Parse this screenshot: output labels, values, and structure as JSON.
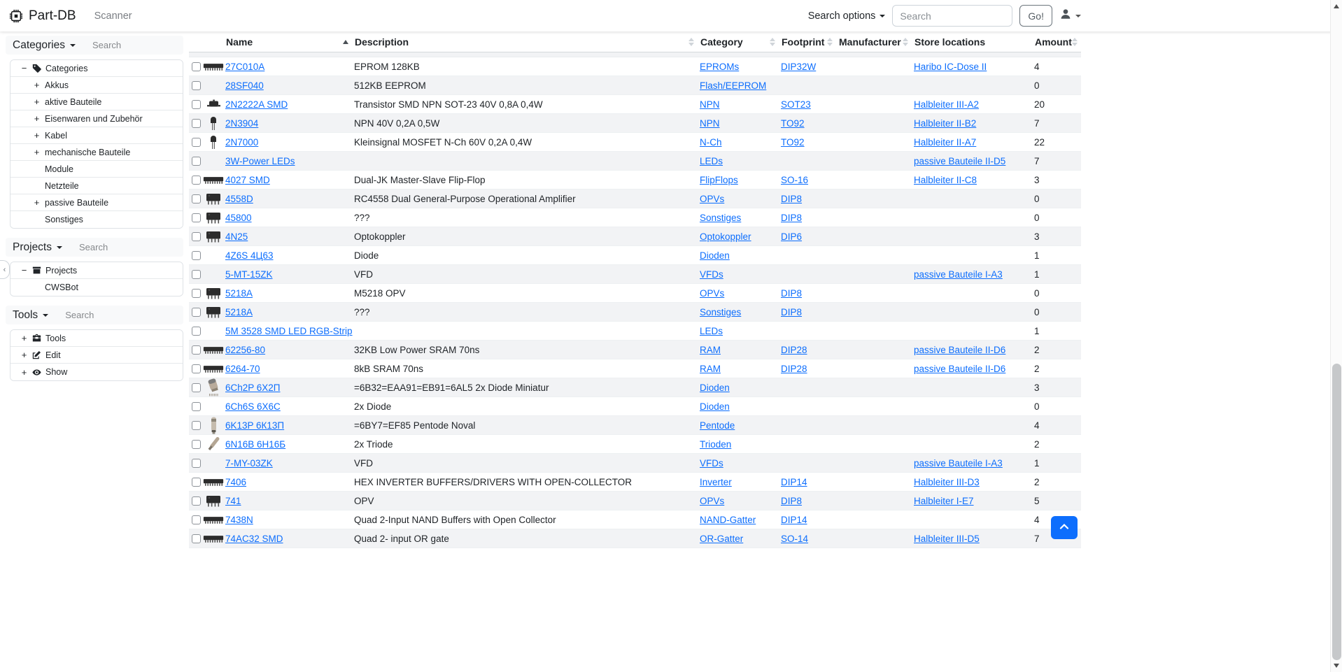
{
  "colors": {
    "link_blue": "#0d6efd",
    "accent_blue": "#0d6efd",
    "stripe_gray": "#f2f3f5"
  },
  "navbar": {
    "brand": "Part-DB",
    "brand_icon": "cpu-chip-icon",
    "scanner_label": "Scanner",
    "search_options_label": "Search options",
    "search_placeholder": "Search",
    "go_label": "Go!",
    "user_icon": "person-icon"
  },
  "sidebar": {
    "panels": [
      {
        "title": "Categories",
        "search_placeholder": "Search",
        "tree": [
          {
            "label": "Categories",
            "toggle": "minus",
            "icon": "tag-icon",
            "level": 0
          },
          {
            "label": "Akkus",
            "toggle": "plus",
            "level": 1
          },
          {
            "label": "aktive Bauteile",
            "toggle": "plus",
            "level": 1
          },
          {
            "label": "Eisenwaren und Zubehör",
            "toggle": "plus",
            "level": 1
          },
          {
            "label": "Kabel",
            "toggle": "plus",
            "level": 1
          },
          {
            "label": "mechanische Bauteile",
            "toggle": "plus",
            "level": 1
          },
          {
            "label": "Module",
            "toggle": "none",
            "level": 1
          },
          {
            "label": "Netzteile",
            "toggle": "none",
            "level": 1
          },
          {
            "label": "passive Bauteile",
            "toggle": "plus",
            "level": 1
          },
          {
            "label": "Sonstiges",
            "toggle": "none",
            "level": 1
          }
        ]
      },
      {
        "title": "Projects",
        "search_placeholder": "Search",
        "tree": [
          {
            "label": "Projects",
            "toggle": "minus",
            "icon": "archive-box-icon",
            "level": 0
          },
          {
            "label": "CWSBot",
            "toggle": "none",
            "level": 1
          }
        ]
      },
      {
        "title": "Tools",
        "search_placeholder": "Search",
        "tree": [
          {
            "label": "Tools",
            "toggle": "plus",
            "icon": "toolbox-icon",
            "level": 0
          },
          {
            "label": "Edit",
            "toggle": "plus",
            "icon": "pencil-square-icon",
            "level": 0
          },
          {
            "label": "Show",
            "toggle": "plus",
            "icon": "eye-icon",
            "level": 0
          }
        ]
      }
    ],
    "collapse_handle_icon": "chevron-left-icon"
  },
  "table": {
    "columns": [
      {
        "label": "Name",
        "sort": "asc"
      },
      {
        "label": "Description",
        "sort": "both"
      },
      {
        "label": "Category",
        "sort": "both"
      },
      {
        "label": "Footprint",
        "sort": "both"
      },
      {
        "label": "Manufacturer",
        "sort": "both"
      },
      {
        "label": "Store locations",
        "sort": "none"
      },
      {
        "label": "Amount",
        "sort": "both"
      }
    ],
    "rows": [
      {
        "name": "27C010A",
        "thumb": "ic-dip-side",
        "desc": "EPROM 128KB",
        "category": "EPROMs",
        "footprint": "DIP32W",
        "manufacturer": "",
        "store": "Haribo IC-Dose II",
        "amount": "4"
      },
      {
        "name": "28SF040",
        "thumb": "",
        "desc": "512KB EEPROM",
        "category": "Flash/EEPROM",
        "footprint": "",
        "manufacturer": "",
        "store": "",
        "amount": "0"
      },
      {
        "name": "2N2222A SMD",
        "thumb": "sot23",
        "desc": "Transistor SMD NPN SOT-23 40V 0,8A 0,4W",
        "category": "NPN",
        "footprint": "SOT23",
        "manufacturer": "",
        "store": "Halbleiter III-A2",
        "amount": "20"
      },
      {
        "name": "2N3904",
        "thumb": "to92",
        "desc": "NPN 40V 0,2A 0,5W",
        "category": "NPN",
        "footprint": "TO92",
        "manufacturer": "",
        "store": "Halbleiter II-B2",
        "amount": "7"
      },
      {
        "name": "2N7000",
        "thumb": "to92",
        "desc": "Kleinsignal MOSFET N-Ch 60V 0,2A 0,4W",
        "category": "N-Ch",
        "footprint": "TO92",
        "manufacturer": "",
        "store": "Halbleiter II-A7",
        "amount": "22"
      },
      {
        "name": "3W-Power LEDs",
        "thumb": "",
        "desc": "",
        "category": "LEDs",
        "footprint": "",
        "manufacturer": "",
        "store": "passive Bauteile II-D5",
        "amount": "7"
      },
      {
        "name": "4027 SMD",
        "thumb": "ic-dip-side",
        "desc": "Dual-JK Master-Slave Flip-Flop",
        "category": "FlipFlops",
        "footprint": "SO-16",
        "manufacturer": "",
        "store": "Halbleiter II-C8",
        "amount": "3"
      },
      {
        "name": "4558D",
        "thumb": "ic-dip8",
        "desc": "RC4558 Dual General-Purpose Operational Amplifier",
        "category": "OPVs",
        "footprint": "DIP8",
        "manufacturer": "",
        "store": "",
        "amount": "0"
      },
      {
        "name": "45800",
        "thumb": "ic-dip8",
        "desc": "???",
        "category": "Sonstiges",
        "footprint": "DIP8",
        "manufacturer": "",
        "store": "",
        "amount": "0"
      },
      {
        "name": "4N25",
        "thumb": "ic-dip8",
        "desc": "Optokoppler",
        "category": "Optokoppler",
        "footprint": "DIP6",
        "manufacturer": "",
        "store": "",
        "amount": "3"
      },
      {
        "name": "4Z6S 4Ц63",
        "thumb": "",
        "desc": "Diode",
        "category": "Dioden",
        "footprint": "",
        "manufacturer": "",
        "store": "",
        "amount": "1"
      },
      {
        "name": "5-MT-15ZK",
        "thumb": "",
        "desc": "VFD",
        "category": "VFDs",
        "footprint": "",
        "manufacturer": "",
        "store": "passive Bauteile I-A3",
        "amount": "1"
      },
      {
        "name": "5218A",
        "thumb": "ic-dip8",
        "desc": "M5218 OPV",
        "category": "OPVs",
        "footprint": "DIP8",
        "manufacturer": "",
        "store": "",
        "amount": "0"
      },
      {
        "name": "5218A",
        "thumb": "ic-dip8",
        "desc": "???",
        "category": "Sonstiges",
        "footprint": "DIP8",
        "manufacturer": "",
        "store": "",
        "amount": "0"
      },
      {
        "name": "5M 3528 SMD LED RGB-Strip",
        "thumb": "",
        "desc": "",
        "category": "LEDs",
        "footprint": "",
        "manufacturer": "",
        "store": "",
        "amount": "1"
      },
      {
        "name": "62256-80",
        "thumb": "ic-dip-side",
        "desc": "32KB Low Power SRAM 70ns",
        "category": "RAM",
        "footprint": "DIP28",
        "manufacturer": "",
        "store": "passive Bauteile II-D6",
        "amount": "2"
      },
      {
        "name": "6264-70",
        "thumb": "ic-dip-side",
        "desc": "8kB SRAM 70ns",
        "category": "RAM",
        "footprint": "DIP28",
        "manufacturer": "",
        "store": "passive Bauteile II-D6",
        "amount": "2"
      },
      {
        "name": "6Ch2P 6Х2П",
        "thumb": "tube-round",
        "desc": "=6B32=EAA91=EB91=6AL5 2x Diode Miniatur",
        "category": "Dioden",
        "footprint": "",
        "manufacturer": "",
        "store": "",
        "amount": "3"
      },
      {
        "name": "6Ch6S 6X6C",
        "thumb": "",
        "desc": "2x Diode",
        "category": "Dioden",
        "footprint": "",
        "manufacturer": "",
        "store": "",
        "amount": "0"
      },
      {
        "name": "6K13P 6К13П",
        "thumb": "tube-tall",
        "desc": "=6BY7=EF85 Pentode Noval",
        "category": "Pentode",
        "footprint": "",
        "manufacturer": "",
        "store": "",
        "amount": "4"
      },
      {
        "name": "6N16B 6Н16Б",
        "thumb": "tube-diagonal",
        "desc": "2x Triode",
        "category": "Trioden",
        "footprint": "",
        "manufacturer": "",
        "store": "",
        "amount": "2"
      },
      {
        "name": "7-MY-03ZK",
        "thumb": "",
        "desc": "VFD",
        "category": "VFDs",
        "footprint": "",
        "manufacturer": "",
        "store": "passive Bauteile I-A3",
        "amount": "1"
      },
      {
        "name": "7406",
        "thumb": "ic-dip-side",
        "desc": "HEX INVERTER BUFFERS/DRIVERS WITH OPEN-COLLECTOR",
        "category": "Inverter",
        "footprint": "DIP14",
        "manufacturer": "",
        "store": "Halbleiter III-D3",
        "amount": "2"
      },
      {
        "name": "741",
        "thumb": "ic-dip8",
        "desc": "OPV",
        "category": "OPVs",
        "footprint": "DIP8",
        "manufacturer": "",
        "store": "Halbleiter I-E7",
        "amount": "5"
      },
      {
        "name": "7438N",
        "thumb": "ic-dip-side",
        "desc": "Quad 2-Input NAND Buffers with Open Collector",
        "category": "NAND-Gatter",
        "footprint": "DIP14",
        "manufacturer": "",
        "store": "",
        "amount": "4"
      },
      {
        "name": "74AC32 SMD",
        "thumb": "ic-dip-side",
        "desc": "Quad 2- input OR gate",
        "category": "OR-Gatter",
        "footprint": "SO-14",
        "manufacturer": "",
        "store": "Halbleiter III-D5",
        "amount": "7"
      }
    ]
  },
  "floating": {
    "scroll_top_icon": "chevron-up-icon"
  }
}
